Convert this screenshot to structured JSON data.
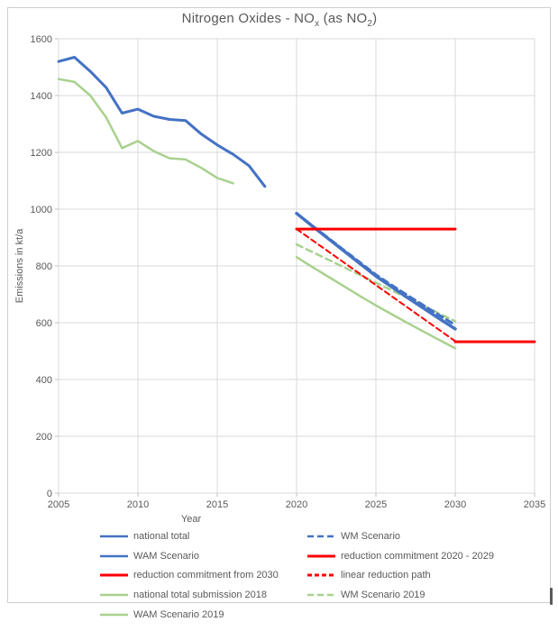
{
  "chart_data": {
    "type": "line",
    "title_parts": [
      {
        "text": "Nitrogen Oxides - NO"
      },
      {
        "sub": "x"
      },
      {
        "text": " (as NO"
      },
      {
        "sub": "2"
      },
      {
        "text": ")"
      }
    ],
    "title_plain": "Nitrogen Oxides - NOx (as NO2)",
    "xlabel": "Year",
    "ylabel": "Emissions in kt/a",
    "xlim": [
      2005,
      2035
    ],
    "ylim": [
      0,
      1600
    ],
    "x_ticks": [
      2005,
      2010,
      2015,
      2020,
      2025,
      2030,
      2035
    ],
    "y_ticks": [
      0,
      200,
      400,
      600,
      800,
      1000,
      1200,
      1400,
      1600
    ],
    "grid": true,
    "legend_position": "bottom",
    "colors": {
      "blue": "#4472C4",
      "green": "#A9D18E",
      "red": "#FF0000",
      "gridline": "#D9D9D9",
      "tick": "#BFBFBF",
      "text": "#595959"
    },
    "series": [
      {
        "name": "national total",
        "color": "#4472C4",
        "dash": "",
        "width": 3,
        "x": [
          2005,
          2006,
          2007,
          2008,
          2009,
          2010,
          2011,
          2012,
          2013,
          2014,
          2015,
          2016,
          2017,
          2018
        ],
        "values": [
          1520,
          1535,
          1485,
          1428,
          1338,
          1352,
          1327,
          1316,
          1312,
          1264,
          1226,
          1193,
          1153,
          1080
        ]
      },
      {
        "name": "national total submission 2018",
        "color": "#A9D18E",
        "dash": "",
        "width": 2.5,
        "x": [
          2005,
          2006,
          2007,
          2008,
          2009,
          2010,
          2011,
          2012,
          2013,
          2014,
          2015,
          2016
        ],
        "values": [
          1458,
          1448,
          1400,
          1323,
          1215,
          1240,
          1204,
          1179,
          1175,
          1145,
          1110,
          1091
        ]
      },
      {
        "name": "WAM Scenario 2019",
        "color": "#A9D18E",
        "dash": "",
        "width": 2.5,
        "x": [
          2020,
          2021,
          2022,
          2023,
          2024,
          2025,
          2026,
          2027,
          2028,
          2029,
          2030
        ],
        "values": [
          831,
          796,
          762,
          728,
          694,
          661,
          630,
          599,
          569,
          539,
          510
        ]
      },
      {
        "name": "WM Scenario 2019",
        "color": "#A9D18E",
        "dash": "7 5",
        "width": 2.5,
        "x": [
          2020,
          2021,
          2022,
          2023,
          2024,
          2025,
          2026,
          2027,
          2028,
          2029,
          2030
        ],
        "values": [
          876,
          849,
          822,
          795,
          768,
          741,
          714,
          687,
          660,
          632,
          605
        ]
      },
      {
        "name": "linear reduction path",
        "color": "#FF0000",
        "dash": "6 4",
        "width": 2,
        "x": [
          2020,
          2030
        ],
        "values": [
          930,
          535
        ]
      },
      {
        "name": "WAM Scenario",
        "color": "#4472C4",
        "dash": "",
        "width": 3.5,
        "x": [
          2020,
          2021,
          2022,
          2023,
          2024,
          2025,
          2026,
          2027,
          2028,
          2029,
          2030
        ],
        "values": [
          985,
          940,
          896,
          852,
          808,
          764,
          726,
          688,
          651,
          614,
          578
        ]
      },
      {
        "name": "WM Scenario",
        "color": "#4472C4",
        "dash": "7 5",
        "width": 3,
        "x": [
          2020,
          2021,
          2022,
          2023,
          2024,
          2025,
          2026,
          2027,
          2028,
          2029,
          2030
        ],
        "values": [
          985,
          941,
          898,
          855,
          812,
          769,
          732,
          696,
          661,
          626,
          592
        ]
      },
      {
        "name": "reduction commitment 2020 - 2029",
        "color": "#FF0000",
        "dash": "",
        "width": 3,
        "x": [
          2020,
          2030
        ],
        "values": [
          930,
          930
        ]
      },
      {
        "name": "reduction commitment from 2030",
        "color": "#FF0000",
        "dash": "",
        "width": 3,
        "x": [
          2030,
          2035
        ],
        "values": [
          533,
          533
        ]
      }
    ]
  },
  "legend_items": [
    {
      "label": "national total",
      "color": "#4472C4",
      "dash": ""
    },
    {
      "label": "WM Scenario",
      "color": "#4472C4",
      "dash": "7 4"
    },
    {
      "label": "WAM Scenario",
      "color": "#4472C4",
      "dash": ""
    },
    {
      "label": "reduction commitment 2020 - 2029",
      "color": "#FF0000",
      "dash": ""
    },
    {
      "label": "reduction commitment from 2030",
      "color": "#FF0000",
      "dash": ""
    },
    {
      "label": "linear reduction path",
      "color": "#FF0000",
      "dash": "5 3"
    },
    {
      "label": "national total submission 2018",
      "color": "#A9D18E",
      "dash": ""
    },
    {
      "label": "WM Scenario 2019",
      "color": "#A9D18E",
      "dash": "7 4"
    },
    {
      "label": "WAM Scenario 2019",
      "color": "#A9D18E",
      "dash": ""
    }
  ]
}
